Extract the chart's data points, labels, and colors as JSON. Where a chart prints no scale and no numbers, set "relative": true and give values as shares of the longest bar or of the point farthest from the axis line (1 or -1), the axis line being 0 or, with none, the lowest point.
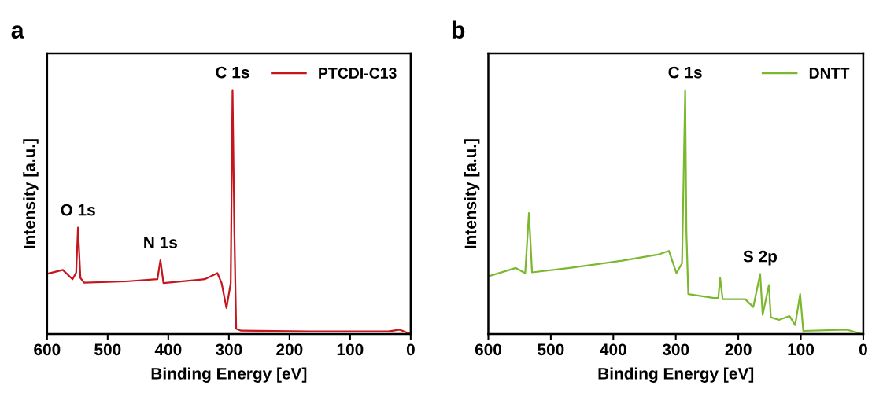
{
  "chart_data": [
    {
      "type": "line",
      "title": "a",
      "xlabel": "Binding Energy [eV]",
      "ylabel": "Intensity [a.u.]",
      "relative": true,
      "xlim": [
        600,
        0
      ],
      "xticks": [
        600,
        500,
        400,
        300,
        200,
        100,
        0
      ],
      "tick_labels": "x",
      "grid": false,
      "legend": "top right",
      "series": [
        {
          "name": "PTCDI-C13",
          "color": "#c4161c",
          "x": [
            600,
            574,
            558,
            552,
            549,
            545,
            539,
            470,
            418,
            413,
            408,
            340,
            319,
            312,
            304,
            297,
            294,
            291,
            288,
            280,
            168,
            37,
            18,
            0
          ],
          "values": [
            0.247,
            0.263,
            0.225,
            0.252,
            0.436,
            0.23,
            0.211,
            0.216,
            0.225,
            0.303,
            0.209,
            0.225,
            0.25,
            0.209,
            0.107,
            0.209,
            1.0,
            0.424,
            0.022,
            0.014,
            0.011,
            0.011,
            0.018,
            0.0
          ]
        }
      ],
      "annotations": [
        {
          "text": "O 1s",
          "x": 549,
          "y": 0.436
        },
        {
          "text": "N 1s",
          "x": 413,
          "y": 0.303
        },
        {
          "text": "C 1s",
          "x": 294,
          "y": 1.0
        }
      ]
    },
    {
      "type": "line",
      "title": "b",
      "xlabel": "Binding Energy [eV]",
      "ylabel": "Intensity [a.u.]",
      "relative": true,
      "xlim": [
        600,
        0
      ],
      "xticks": [
        600,
        500,
        400,
        300,
        200,
        100,
        0
      ],
      "tick_labels": "x",
      "grid": false,
      "legend": "top right",
      "series": [
        {
          "name": "DNTT",
          "color": "#7cb82f",
          "x": [
            598,
            556,
            541,
            535,
            530,
            470,
            386,
            327,
            311,
            299,
            290,
            285,
            283,
            280,
            239,
            232,
            229,
            225,
            189,
            176,
            165,
            161,
            151,
            148,
            135,
            118,
            109,
            101,
            96,
            26,
            1
          ],
          "values": [
            0.238,
            0.271,
            0.25,
            0.496,
            0.253,
            0.271,
            0.301,
            0.327,
            0.341,
            0.25,
            0.29,
            1.0,
            0.417,
            0.164,
            0.148,
            0.148,
            0.229,
            0.143,
            0.143,
            0.111,
            0.246,
            0.079,
            0.201,
            0.069,
            0.058,
            0.074,
            0.037,
            0.164,
            0.013,
            0.018,
            0.0
          ]
        }
      ],
      "annotations": [
        {
          "text": "C 1s",
          "x": 285,
          "y": 1.0
        },
        {
          "text": "S 2p",
          "x": 165,
          "y": 0.246
        }
      ]
    }
  ]
}
